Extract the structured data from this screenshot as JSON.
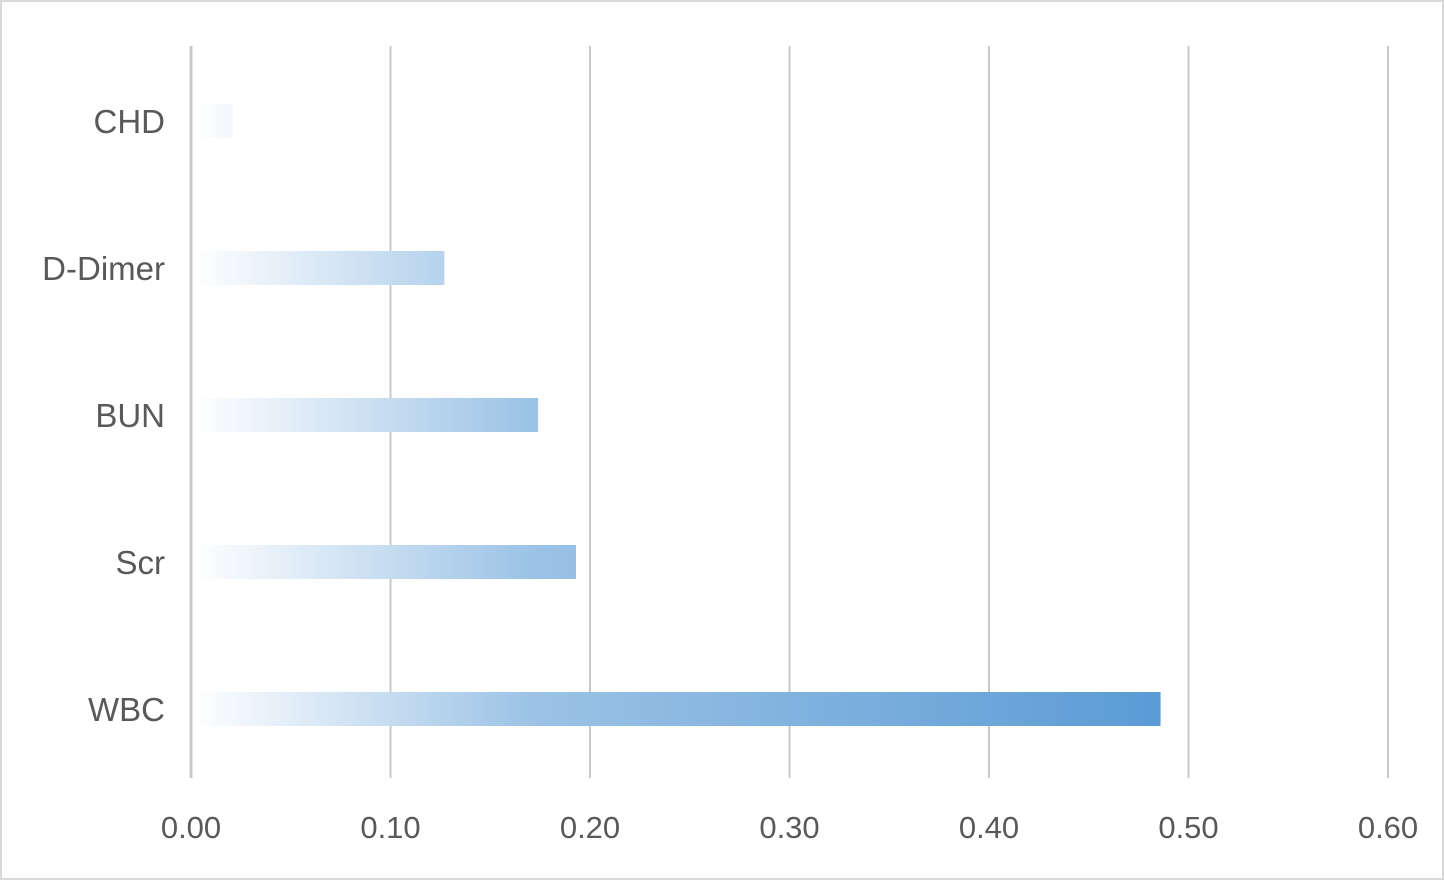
{
  "chart_data": {
    "type": "bar",
    "orientation": "horizontal",
    "categories": [
      "CHD",
      "D-Dimer",
      "BUN",
      "Scr",
      "WBC"
    ],
    "values": [
      0.021,
      0.127,
      0.174,
      0.193,
      0.486
    ],
    "xlim": [
      0,
      0.6
    ],
    "x_ticks": [
      "0.00",
      "0.10",
      "0.20",
      "0.30",
      "0.40",
      "0.50",
      "0.60"
    ],
    "title": "",
    "xlabel": "",
    "ylabel": "",
    "grid": "vertical",
    "legend": "none",
    "bar_color": "#5b9bd5",
    "gridline_color": "#c8c8c8",
    "text_color": "#595959",
    "fill_style": "gradient from white to blue"
  }
}
